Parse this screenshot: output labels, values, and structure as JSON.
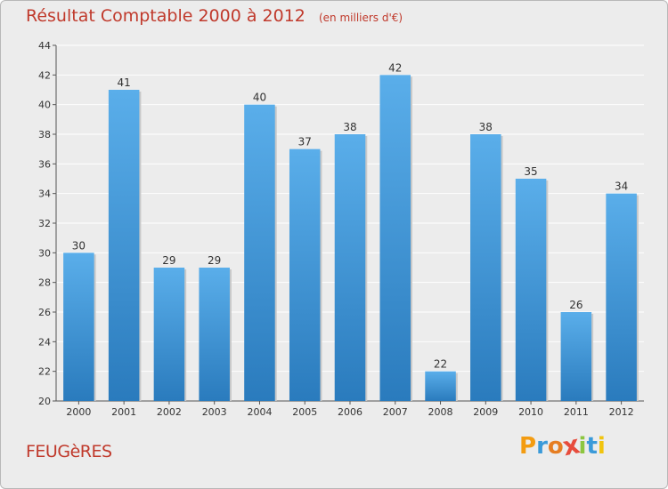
{
  "chart_data": {
    "type": "bar",
    "title": "Résultat Comptable 2000 à 2012",
    "subtitle": "(en milliers d'€)",
    "categories": [
      "2000",
      "2001",
      "2002",
      "2003",
      "2004",
      "2005",
      "2006",
      "2007",
      "2008",
      "2009",
      "2010",
      "2011",
      "2012"
    ],
    "values": [
      30,
      41,
      29,
      29,
      40,
      37,
      38,
      42,
      22,
      38,
      35,
      26,
      34
    ],
    "ylim": [
      20,
      44
    ],
    "yticks": [
      20,
      22,
      24,
      26,
      28,
      30,
      32,
      34,
      36,
      38,
      40,
      42,
      44
    ],
    "xlabel": "",
    "ylabel": "",
    "grid": true,
    "bar_color": "#3f95d9",
    "bar_color_light": "#5aaeea",
    "bar_color_dark": "#2a7bbd"
  },
  "footer": {
    "town": "FEUGèRES",
    "brand_letters": [
      "P",
      "r",
      "o",
      "x",
      "i",
      "t",
      "i"
    ],
    "brand_colors": [
      "#f39c12",
      "#3a9ad9",
      "#e67e22",
      "#e74c3c",
      "#8cc63f",
      "#3a9ad9",
      "#f1c40f"
    ]
  }
}
